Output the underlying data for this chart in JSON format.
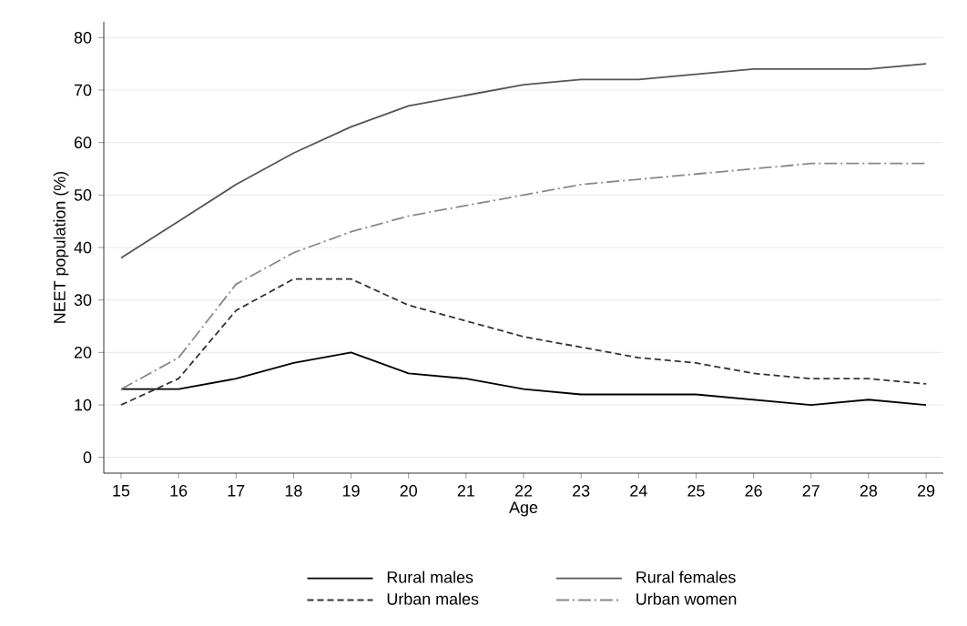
{
  "chart_data": {
    "type": "line",
    "xlabel": "Age",
    "ylabel": "NEET population (%)",
    "x": [
      15,
      16,
      17,
      18,
      19,
      20,
      21,
      22,
      23,
      24,
      25,
      26,
      27,
      28,
      29
    ],
    "xlim": [
      14.7,
      29.3
    ],
    "ylim": [
      -3,
      83
    ],
    "xticks": [
      15,
      16,
      17,
      18,
      19,
      20,
      21,
      22,
      23,
      24,
      25,
      26,
      27,
      28,
      29
    ],
    "yticks": [
      0,
      10,
      20,
      30,
      40,
      50,
      60,
      70,
      80
    ],
    "grid": "y",
    "legend": "bottom",
    "marker": "none",
    "series": [
      {
        "name": "Rural males",
        "color": "#000000",
        "line_style": "solid",
        "values": [
          13,
          13,
          15,
          18,
          20,
          16,
          15,
          13,
          12,
          12,
          12,
          11,
          10,
          11,
          10
        ]
      },
      {
        "name": "Rural females",
        "color": "#555555",
        "line_style": "solid",
        "values": [
          38,
          45,
          52,
          58,
          63,
          67,
          69,
          71,
          72,
          72,
          73,
          74,
          74,
          74,
          75
        ]
      },
      {
        "name": "Urban males",
        "color": "#333333",
        "line_style": "dashed",
        "values": [
          10,
          15,
          28,
          34,
          34,
          29,
          26,
          23,
          21,
          19,
          18,
          16,
          15,
          15,
          14
        ]
      },
      {
        "name": "Urban women",
        "color": "#888888",
        "line_style": "dashdot",
        "values": [
          13,
          19,
          33,
          39,
          43,
          46,
          48,
          50,
          52,
          53,
          54,
          55,
          56,
          56,
          56
        ]
      }
    ]
  }
}
